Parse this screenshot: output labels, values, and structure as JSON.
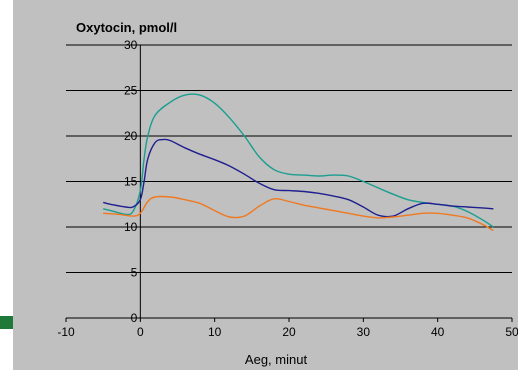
{
  "chart_data": {
    "type": "line",
    "title": "Oxytocin, pmol/l",
    "xlabel": "Aeg, minut",
    "ylabel": "",
    "xlim": [
      -10,
      50
    ],
    "ylim": [
      0,
      30
    ],
    "x_ticks": [
      -10,
      0,
      10,
      20,
      30,
      40,
      50
    ],
    "y_ticks": [
      0,
      5,
      10,
      15,
      20,
      25,
      30
    ],
    "x_tick_labels": [
      "-10",
      "0",
      "10",
      "20",
      "30",
      "40",
      "50"
    ],
    "y_tick_labels": [
      "0",
      "5",
      "10",
      "15",
      "20",
      "25",
      "30"
    ],
    "grid": "horizontal",
    "legend": "none",
    "series": [
      {
        "color": "#1a9e8f",
        "points": [
          [
            -5,
            12.0
          ],
          [
            -4,
            11.8
          ],
          [
            -2,
            11.4
          ],
          [
            -1,
            11.7
          ],
          [
            0,
            14.0
          ],
          [
            0.5,
            17.5
          ],
          [
            1,
            20.0
          ],
          [
            2,
            22.3
          ],
          [
            4,
            23.7
          ],
          [
            6,
            24.5
          ],
          [
            8,
            24.5
          ],
          [
            10,
            23.6
          ],
          [
            12,
            22.0
          ],
          [
            14,
            20.0
          ],
          [
            16,
            17.7
          ],
          [
            18,
            16.3
          ],
          [
            20,
            15.8
          ],
          [
            22,
            15.7
          ],
          [
            24,
            15.6
          ],
          [
            26,
            15.7
          ],
          [
            28,
            15.6
          ],
          [
            30,
            15.0
          ],
          [
            32,
            14.3
          ],
          [
            34,
            13.6
          ],
          [
            36,
            13.0
          ],
          [
            38,
            12.7
          ],
          [
            40,
            12.5
          ],
          [
            42,
            12.3
          ],
          [
            44,
            11.7
          ],
          [
            46,
            10.8
          ],
          [
            47.5,
            10.0
          ]
        ]
      },
      {
        "color": "#1f1f8f",
        "points": [
          [
            -5,
            12.7
          ],
          [
            -4,
            12.5
          ],
          [
            -2,
            12.2
          ],
          [
            -1,
            12.2
          ],
          [
            0,
            13.0
          ],
          [
            0.5,
            15.0
          ],
          [
            1,
            17.5
          ],
          [
            2,
            19.3
          ],
          [
            3,
            19.6
          ],
          [
            4,
            19.5
          ],
          [
            6,
            18.7
          ],
          [
            8,
            18.0
          ],
          [
            10,
            17.4
          ],
          [
            12,
            16.7
          ],
          [
            14,
            15.8
          ],
          [
            16,
            14.8
          ],
          [
            18,
            14.1
          ],
          [
            20,
            14.0
          ],
          [
            22,
            13.9
          ],
          [
            24,
            13.7
          ],
          [
            26,
            13.4
          ],
          [
            28,
            13.0
          ],
          [
            30,
            12.2
          ],
          [
            32,
            11.3
          ],
          [
            34,
            11.2
          ],
          [
            36,
            12.0
          ],
          [
            38,
            12.6
          ],
          [
            40,
            12.5
          ],
          [
            42,
            12.3
          ],
          [
            44,
            12.2
          ],
          [
            46,
            12.1
          ],
          [
            47.5,
            12.0
          ]
        ]
      },
      {
        "color": "#f07820",
        "points": [
          [
            -5,
            11.5
          ],
          [
            -3,
            11.4
          ],
          [
            -1,
            11.2
          ],
          [
            0,
            11.5
          ],
          [
            1,
            12.8
          ],
          [
            2,
            13.3
          ],
          [
            4,
            13.3
          ],
          [
            6,
            13.0
          ],
          [
            8,
            12.6
          ],
          [
            10,
            11.8
          ],
          [
            12,
            11.1
          ],
          [
            14,
            11.2
          ],
          [
            16,
            12.3
          ],
          [
            18,
            13.1
          ],
          [
            20,
            12.8
          ],
          [
            22,
            12.4
          ],
          [
            24,
            12.1
          ],
          [
            26,
            11.8
          ],
          [
            28,
            11.5
          ],
          [
            30,
            11.2
          ],
          [
            32,
            11.0
          ],
          [
            34,
            11.1
          ],
          [
            36,
            11.3
          ],
          [
            38,
            11.5
          ],
          [
            40,
            11.5
          ],
          [
            42,
            11.3
          ],
          [
            44,
            11.0
          ],
          [
            46,
            10.3
          ],
          [
            47.5,
            9.6
          ]
        ]
      }
    ]
  }
}
